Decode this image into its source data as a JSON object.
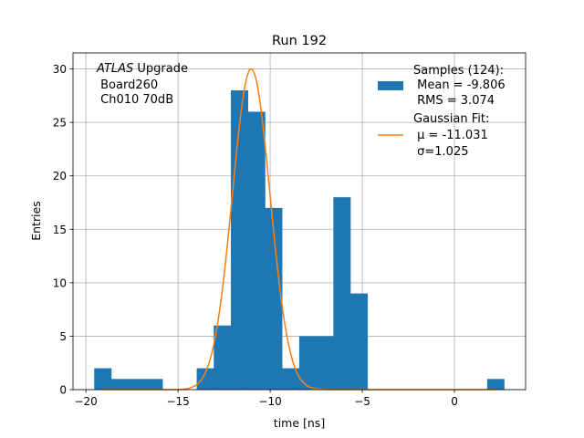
{
  "chart_data": {
    "type": "bar",
    "title": "Run 192",
    "xlabel": "time [ns]",
    "ylabel": "Entries",
    "xlim": [
      -20.7,
      3.86
    ],
    "ylim": [
      0,
      31.5
    ],
    "grid": true,
    "xticks": [
      -20,
      -15,
      -10,
      -5,
      0
    ],
    "yticks": [
      0,
      5,
      10,
      15,
      20,
      25,
      30
    ],
    "histogram": {
      "bin_start": -19.55,
      "bin_width": 0.927,
      "counts": [
        2,
        1,
        1,
        1,
        0,
        0,
        2,
        6,
        28,
        26,
        17,
        2,
        5,
        5,
        18,
        9,
        0,
        0,
        0,
        0,
        0,
        0,
        0,
        1
      ],
      "color": "#1f77b4"
    },
    "fit": {
      "amplitude": 30,
      "mu": -11.031,
      "sigma": 1.025,
      "x_range": [
        -19.1,
        2.3
      ],
      "color": "#ff7f0e"
    },
    "annotation": {
      "italic": "ATLAS",
      "rest": " Upgrade",
      "line2": " Board260",
      "line3": " Ch010 70dB"
    },
    "legend": {
      "placement": "top-right",
      "samples": {
        "title": "Samples (124):",
        "mean": " Mean = -9.806",
        "rms": " RMS = 3.074"
      },
      "gauss": {
        "title": "Gaussian Fit:",
        "mu": " μ = -11.031",
        "sigma": " σ=1.025"
      }
    }
  }
}
